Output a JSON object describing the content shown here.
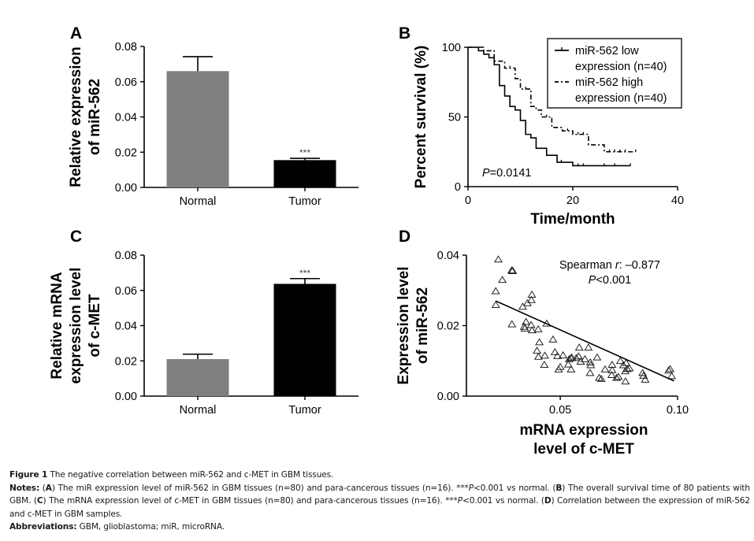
{
  "figure": {
    "panels": {
      "A": "A",
      "B": "B",
      "C": "C",
      "D": "D"
    }
  },
  "chart_data": [
    {
      "id": "A",
      "type": "bar",
      "title": "",
      "categories": [
        "Normal",
        "Tumor"
      ],
      "values": [
        0.066,
        0.0155
      ],
      "error_upper": [
        0.0742,
        0.0165
      ],
      "colors": [
        "#808080",
        "#000000"
      ],
      "annotations": [
        {
          "category": "Tumor",
          "text": "***"
        }
      ],
      "ylabel": [
        "Relative expression",
        "of miR-562"
      ],
      "xlabel": "",
      "ylim": [
        0,
        0.08
      ],
      "yticks": [
        "0.00",
        "0.02",
        "0.04",
        "0.06",
        "0.08"
      ],
      "ytick_values": [
        0,
        0.02,
        0.04,
        0.06,
        0.08
      ],
      "grid": false
    },
    {
      "id": "B",
      "type": "line",
      "subtype": "kaplan-meier",
      "title": "",
      "xlabel": "Time/month",
      "ylabel": "Percent survival (%)",
      "xlim": [
        0,
        40
      ],
      "ylim": [
        0,
        100
      ],
      "xticks": [
        "0",
        "20",
        "40"
      ],
      "xtick_values": [
        0,
        20,
        40
      ],
      "yticks": [
        "0",
        "50",
        "100"
      ],
      "ytick_values": [
        0,
        50,
        100
      ],
      "legend": "top-right",
      "annotation": {
        "italic": "P",
        "text": "=0.0141"
      },
      "series": [
        {
          "name": "miR-562 low expression (n=40)",
          "legend_lines": [
            "miR-562 low",
            "expression (n=40)"
          ],
          "style": "solid",
          "steps": [
            [
              0,
              100
            ],
            [
              2,
              97.5
            ],
            [
              3,
              95
            ],
            [
              4,
              92.5
            ],
            [
              5,
              87.5
            ],
            [
              6,
              72.5
            ],
            [
              7,
              65
            ],
            [
              8,
              57.5
            ],
            [
              9,
              55
            ],
            [
              10,
              47.5
            ],
            [
              11,
              37.5
            ],
            [
              12,
              35
            ],
            [
              13,
              27.5
            ],
            [
              15,
              22.5
            ],
            [
              17,
              17.5
            ],
            [
              20,
              15
            ],
            [
              31,
              15
            ]
          ],
          "censored": [
            17.8,
            21,
            22,
            26,
            28,
            31
          ]
        },
        {
          "name": "miR-562 high expression (n=40)",
          "legend_lines": [
            "miR-562 high",
            "expression (n=40)"
          ],
          "style": "dashdot",
          "steps": [
            [
              0,
              100
            ],
            [
              3,
              97.5
            ],
            [
              5,
              90
            ],
            [
              7,
              85
            ],
            [
              9,
              77.5
            ],
            [
              10,
              70
            ],
            [
              12,
              57.5
            ],
            [
              13,
              55
            ],
            [
              14,
              50
            ],
            [
              16,
              42.5
            ],
            [
              18,
              40
            ],
            [
              20,
              37.5
            ],
            [
              23,
              30
            ],
            [
              26,
              25
            ],
            [
              32,
              25
            ]
          ],
          "censored": [
            8,
            11,
            15,
            19,
            21,
            22,
            27,
            28,
            29,
            30,
            32
          ]
        }
      ],
      "grid": false
    },
    {
      "id": "C",
      "type": "bar",
      "title": "",
      "categories": [
        "Normal",
        "Tumor"
      ],
      "values": [
        0.021,
        0.0637
      ],
      "error_upper": [
        0.0238,
        0.0667
      ],
      "colors": [
        "#808080",
        "#000000"
      ],
      "annotations": [
        {
          "category": "Tumor",
          "text": "***"
        }
      ],
      "ylabel": [
        "Relative mRNA",
        "expression level",
        "of c-MET"
      ],
      "xlabel": "",
      "ylim": [
        0,
        0.08
      ],
      "yticks": [
        "0.00",
        "0.02",
        "0.04",
        "0.06",
        "0.08"
      ],
      "ytick_values": [
        0,
        0.02,
        0.04,
        0.06,
        0.08
      ],
      "grid": false
    },
    {
      "id": "D",
      "type": "scatter",
      "title": "",
      "xlabel": [
        "mRNA expression",
        "level of c-MET"
      ],
      "ylabel": [
        "Expression level",
        "of miR-562"
      ],
      "xlim": [
        0.01,
        0.1
      ],
      "ylim": [
        0,
        0.04
      ],
      "xticks": [
        "0.05",
        "0.10"
      ],
      "xtick_values": [
        0.05,
        0.1
      ],
      "yticks": [
        "0.00",
        "0.02",
        "0.04"
      ],
      "ytick_values": [
        0,
        0.02,
        0.04
      ],
      "marker": "open-triangle",
      "annotation": {
        "prefix": "Spearman ",
        "italic": "r",
        "suffix": ": –0.877",
        "p_italic": "P",
        "p_text": "<0.001"
      },
      "fit_line": {
        "x": [
          0.0225,
          0.0985
        ],
        "y": [
          0.027,
          0.0043
        ]
      },
      "points": [
        [
          0.0236,
          0.0388
        ],
        [
          0.0293,
          0.0357
        ],
        [
          0.0297,
          0.0356
        ],
        [
          0.0296,
          0.0355
        ],
        [
          0.0253,
          0.033
        ],
        [
          0.0225,
          0.0298
        ],
        [
          0.0225,
          0.0259
        ],
        [
          0.0379,
          0.0288
        ],
        [
          0.0377,
          0.0273
        ],
        [
          0.036,
          0.0264
        ],
        [
          0.034,
          0.0254
        ],
        [
          0.0294,
          0.0204
        ],
        [
          0.0354,
          0.0211
        ],
        [
          0.0346,
          0.0197
        ],
        [
          0.0349,
          0.0192
        ],
        [
          0.0376,
          0.0202
        ],
        [
          0.038,
          0.0187
        ],
        [
          0.0406,
          0.019
        ],
        [
          0.0442,
          0.0206
        ],
        [
          0.0411,
          0.0153
        ],
        [
          0.0469,
          0.0161
        ],
        [
          0.0401,
          0.0129
        ],
        [
          0.0407,
          0.0112
        ],
        [
          0.0434,
          0.0115
        ],
        [
          0.0432,
          0.0089
        ],
        [
          0.0477,
          0.0125
        ],
        [
          0.0488,
          0.0114
        ],
        [
          0.0512,
          0.0116
        ],
        [
          0.0493,
          0.0076
        ],
        [
          0.05,
          0.0083
        ],
        [
          0.0534,
          0.009
        ],
        [
          0.0538,
          0.0105
        ],
        [
          0.0545,
          0.0108
        ],
        [
          0.0549,
          0.011
        ],
        [
          0.0546,
          0.0076
        ],
        [
          0.0568,
          0.0108
        ],
        [
          0.0581,
          0.0138
        ],
        [
          0.0578,
          0.0113
        ],
        [
          0.0587,
          0.0098
        ],
        [
          0.0605,
          0.0105
        ],
        [
          0.062,
          0.0138
        ],
        [
          0.0628,
          0.0096
        ],
        [
          0.063,
          0.0088
        ],
        [
          0.0627,
          0.0066
        ],
        [
          0.0657,
          0.011
        ],
        [
          0.0666,
          0.0052
        ],
        [
          0.0675,
          0.0049
        ],
        [
          0.0691,
          0.0076
        ],
        [
          0.0721,
          0.0089
        ],
        [
          0.0721,
          0.0074
        ],
        [
          0.0719,
          0.006
        ],
        [
          0.074,
          0.0052
        ],
        [
          0.0748,
          0.0055
        ],
        [
          0.0756,
          0.01
        ],
        [
          0.0769,
          0.0088
        ],
        [
          0.0781,
          0.0094
        ],
        [
          0.0777,
          0.0071
        ],
        [
          0.0786,
          0.0077
        ],
        [
          0.0778,
          0.0042
        ],
        [
          0.0795,
          0.0079
        ],
        [
          0.0851,
          0.0066
        ],
        [
          0.0855,
          0.0058
        ],
        [
          0.0862,
          0.0047
        ],
        [
          0.0962,
          0.0073
        ],
        [
          0.0968,
          0.0077
        ],
        [
          0.0975,
          0.0057
        ]
      ],
      "grid": false
    }
  ],
  "caption": {
    "figure_label": "Figure 1",
    "figure_title": " The negative correlation between miR-562 and c-MET in GBM tissues.",
    "notes_label": "Notes:",
    "notes_parts": [
      {
        "t": " ("
      },
      {
        "b": "A"
      },
      {
        "t": ") The miR expression level of miR-562 in GBM tissues (n=80) and para-cancerous tissues (n=16). ***"
      },
      {
        "i": "P"
      },
      {
        "t": "<0.001 vs normal. ("
      },
      {
        "b": "B"
      },
      {
        "t": ") The overall survival time of 80 patients with GBM. ("
      },
      {
        "b": "C"
      },
      {
        "t": ") The mRNA expression level of c-MET in GBM tissues (n=80) and para-cancerous tissues (n=16). ***"
      },
      {
        "i": "P"
      },
      {
        "t": "<0.001 vs normal. ("
      },
      {
        "b": "D"
      },
      {
        "t": ") Correlation between the expression of miR-562 and c-MET in GBM samples."
      }
    ],
    "abbrev_label": "Abbreviations:",
    "abbrev_text": " GBM, glioblastoma; miR, microRNA."
  }
}
